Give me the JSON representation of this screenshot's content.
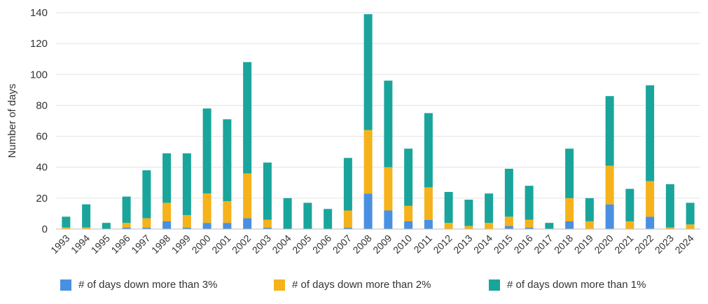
{
  "chart_data": {
    "type": "bar",
    "stacked": true,
    "title": "",
    "xlabel": "",
    "ylabel": "Number of days",
    "ylim": [
      0,
      140
    ],
    "yticks": [
      0,
      20,
      40,
      60,
      80,
      100,
      120,
      140
    ],
    "grid": true,
    "legend_position": "bottom",
    "categories": [
      "1993",
      "1994",
      "1995",
      "1996",
      "1997",
      "1998",
      "1999",
      "2000",
      "2001",
      "2002",
      "2003",
      "2004",
      "2005",
      "2006",
      "2007",
      "2008",
      "2009",
      "2010",
      "2011",
      "2012",
      "2013",
      "2014",
      "2015",
      "2016",
      "2017",
      "2018",
      "2019",
      "2020",
      "2021",
      "2022",
      "2023",
      "2024"
    ],
    "series": [
      {
        "name": "# of days down more than 3%",
        "color": "#4a90e2",
        "values": [
          0,
          0,
          0,
          1,
          1,
          5,
          1,
          4,
          4,
          7,
          1,
          0,
          0,
          0,
          1,
          23,
          12,
          5,
          6,
          0,
          0,
          0,
          2,
          1,
          0,
          5,
          0,
          16,
          0,
          8,
          0,
          0
        ]
      },
      {
        "name": "# of days down more than 2%",
        "color": "#f5b21a",
        "values": [
          1,
          1,
          0,
          3,
          6,
          12,
          8,
          19,
          14,
          29,
          5,
          0,
          0,
          0,
          11,
          41,
          28,
          10,
          21,
          4,
          2,
          4,
          6,
          5,
          0,
          15,
          5,
          25,
          5,
          23,
          1,
          3
        ]
      },
      {
        "name": "# of days down more than 1%",
        "color": "#1aa59c",
        "values": [
          7,
          15,
          4,
          17,
          31,
          32,
          40,
          55,
          53,
          72,
          37,
          20,
          17,
          13,
          34,
          75,
          56,
          37,
          48,
          20,
          17,
          19,
          31,
          22,
          4,
          32,
          15,
          45,
          21,
          62,
          28,
          14
        ]
      }
    ]
  }
}
